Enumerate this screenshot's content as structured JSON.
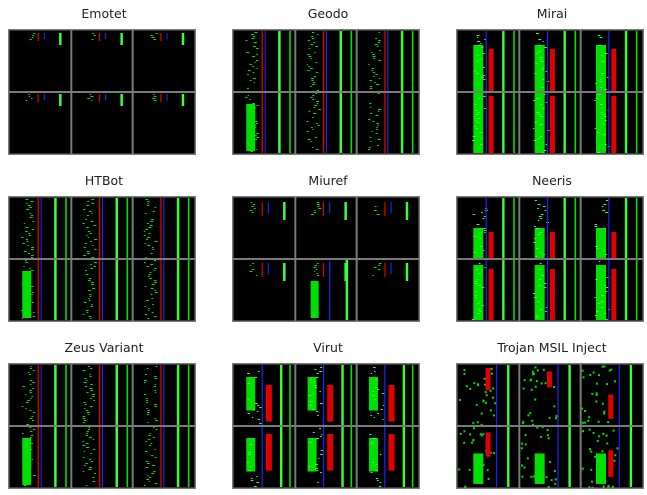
{
  "figure": {
    "panels": [
      {
        "title": "Emotet",
        "pattern": "sparse"
      },
      {
        "title": "Geodo",
        "pattern": "dense-left"
      },
      {
        "title": "Mirai",
        "pattern": "blocks"
      },
      {
        "title": "HTBot",
        "pattern": "dense-left"
      },
      {
        "title": "Miuref",
        "pattern": "sparse-mid"
      },
      {
        "title": "Neeris",
        "pattern": "blocks-low"
      },
      {
        "title": "Zeus Variant",
        "pattern": "dense-left"
      },
      {
        "title": "Virut",
        "pattern": "mixed"
      },
      {
        "title": "Trojan MSIL Inject",
        "pattern": "scatter"
      }
    ],
    "colors": {
      "background": "#000000",
      "grid": "#7a7a7a",
      "frame": "#555555",
      "green": "#00e000",
      "bright_green": "#39ff39",
      "red": "#e00000",
      "blue": "#2020ff"
    }
  }
}
